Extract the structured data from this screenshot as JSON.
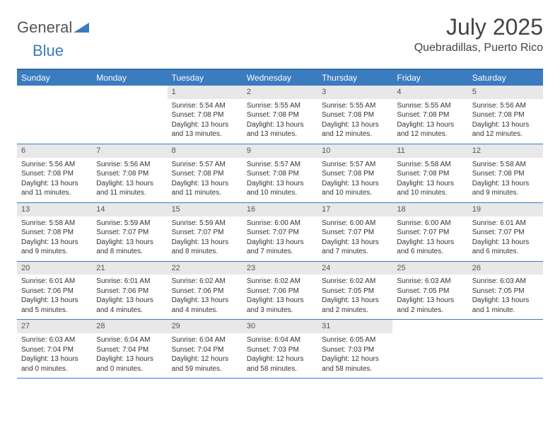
{
  "logo": {
    "text1": "General",
    "text2": "Blue"
  },
  "title": "July 2025",
  "location": "Quebradillas, Puerto Rico",
  "colors": {
    "header_bg": "#3b7bbf",
    "header_text": "#ffffff",
    "daynum_bg": "#e8e8e8",
    "border": "#3b7bbf",
    "text": "#333333",
    "background": "#ffffff"
  },
  "daysOfWeek": [
    "Sunday",
    "Monday",
    "Tuesday",
    "Wednesday",
    "Thursday",
    "Friday",
    "Saturday"
  ],
  "weeks": [
    [
      {
        "blank": true
      },
      {
        "blank": true
      },
      {
        "n": "1",
        "sr": "5:54 AM",
        "ss": "7:08 PM",
        "dl1": "13 hours",
        "dl2": "and 13 minutes."
      },
      {
        "n": "2",
        "sr": "5:55 AM",
        "ss": "7:08 PM",
        "dl1": "13 hours",
        "dl2": "and 13 minutes."
      },
      {
        "n": "3",
        "sr": "5:55 AM",
        "ss": "7:08 PM",
        "dl1": "13 hours",
        "dl2": "and 12 minutes."
      },
      {
        "n": "4",
        "sr": "5:55 AM",
        "ss": "7:08 PM",
        "dl1": "13 hours",
        "dl2": "and 12 minutes."
      },
      {
        "n": "5",
        "sr": "5:56 AM",
        "ss": "7:08 PM",
        "dl1": "13 hours",
        "dl2": "and 12 minutes."
      }
    ],
    [
      {
        "n": "6",
        "sr": "5:56 AM",
        "ss": "7:08 PM",
        "dl1": "13 hours",
        "dl2": "and 11 minutes."
      },
      {
        "n": "7",
        "sr": "5:56 AM",
        "ss": "7:08 PM",
        "dl1": "13 hours",
        "dl2": "and 11 minutes."
      },
      {
        "n": "8",
        "sr": "5:57 AM",
        "ss": "7:08 PM",
        "dl1": "13 hours",
        "dl2": "and 11 minutes."
      },
      {
        "n": "9",
        "sr": "5:57 AM",
        "ss": "7:08 PM",
        "dl1": "13 hours",
        "dl2": "and 10 minutes."
      },
      {
        "n": "10",
        "sr": "5:57 AM",
        "ss": "7:08 PM",
        "dl1": "13 hours",
        "dl2": "and 10 minutes."
      },
      {
        "n": "11",
        "sr": "5:58 AM",
        "ss": "7:08 PM",
        "dl1": "13 hours",
        "dl2": "and 10 minutes."
      },
      {
        "n": "12",
        "sr": "5:58 AM",
        "ss": "7:08 PM",
        "dl1": "13 hours",
        "dl2": "and 9 minutes."
      }
    ],
    [
      {
        "n": "13",
        "sr": "5:58 AM",
        "ss": "7:08 PM",
        "dl1": "13 hours",
        "dl2": "and 9 minutes."
      },
      {
        "n": "14",
        "sr": "5:59 AM",
        "ss": "7:07 PM",
        "dl1": "13 hours",
        "dl2": "and 8 minutes."
      },
      {
        "n": "15",
        "sr": "5:59 AM",
        "ss": "7:07 PM",
        "dl1": "13 hours",
        "dl2": "and 8 minutes."
      },
      {
        "n": "16",
        "sr": "6:00 AM",
        "ss": "7:07 PM",
        "dl1": "13 hours",
        "dl2": "and 7 minutes."
      },
      {
        "n": "17",
        "sr": "6:00 AM",
        "ss": "7:07 PM",
        "dl1": "13 hours",
        "dl2": "and 7 minutes."
      },
      {
        "n": "18",
        "sr": "6:00 AM",
        "ss": "7:07 PM",
        "dl1": "13 hours",
        "dl2": "and 6 minutes."
      },
      {
        "n": "19",
        "sr": "6:01 AM",
        "ss": "7:07 PM",
        "dl1": "13 hours",
        "dl2": "and 6 minutes."
      }
    ],
    [
      {
        "n": "20",
        "sr": "6:01 AM",
        "ss": "7:06 PM",
        "dl1": "13 hours",
        "dl2": "and 5 minutes."
      },
      {
        "n": "21",
        "sr": "6:01 AM",
        "ss": "7:06 PM",
        "dl1": "13 hours",
        "dl2": "and 4 minutes."
      },
      {
        "n": "22",
        "sr": "6:02 AM",
        "ss": "7:06 PM",
        "dl1": "13 hours",
        "dl2": "and 4 minutes."
      },
      {
        "n": "23",
        "sr": "6:02 AM",
        "ss": "7:06 PM",
        "dl1": "13 hours",
        "dl2": "and 3 minutes."
      },
      {
        "n": "24",
        "sr": "6:02 AM",
        "ss": "7:05 PM",
        "dl1": "13 hours",
        "dl2": "and 2 minutes."
      },
      {
        "n": "25",
        "sr": "6:03 AM",
        "ss": "7:05 PM",
        "dl1": "13 hours",
        "dl2": "and 2 minutes."
      },
      {
        "n": "26",
        "sr": "6:03 AM",
        "ss": "7:05 PM",
        "dl1": "13 hours",
        "dl2": "and 1 minute."
      }
    ],
    [
      {
        "n": "27",
        "sr": "6:03 AM",
        "ss": "7:04 PM",
        "dl1": "13 hours",
        "dl2": "and 0 minutes."
      },
      {
        "n": "28",
        "sr": "6:04 AM",
        "ss": "7:04 PM",
        "dl1": "13 hours",
        "dl2": "and 0 minutes."
      },
      {
        "n": "29",
        "sr": "6:04 AM",
        "ss": "7:04 PM",
        "dl1": "12 hours",
        "dl2": "and 59 minutes."
      },
      {
        "n": "30",
        "sr": "6:04 AM",
        "ss": "7:03 PM",
        "dl1": "12 hours",
        "dl2": "and 58 minutes."
      },
      {
        "n": "31",
        "sr": "6:05 AM",
        "ss": "7:03 PM",
        "dl1": "12 hours",
        "dl2": "and 58 minutes."
      },
      {
        "blank": true
      },
      {
        "blank": true
      }
    ]
  ],
  "strings": {
    "sunrise_prefix": "Sunrise: ",
    "sunset_prefix": "Sunset: ",
    "daylight_prefix": "Daylight: "
  }
}
